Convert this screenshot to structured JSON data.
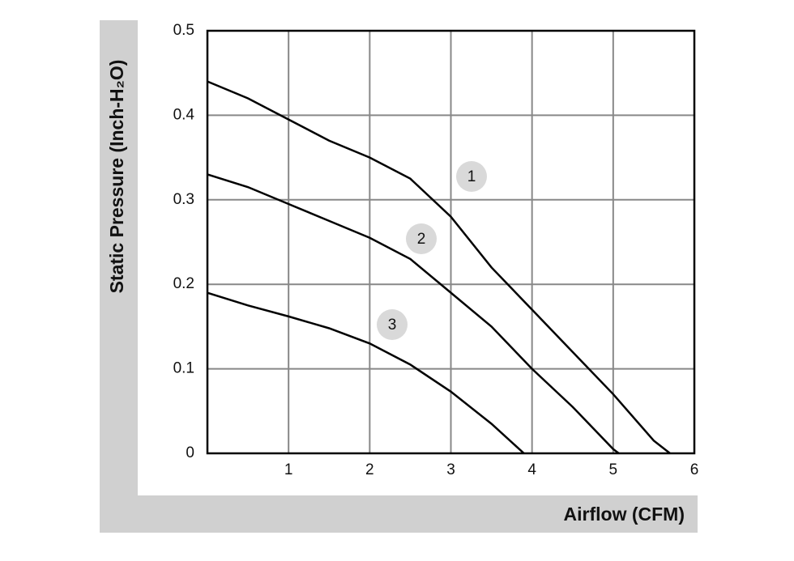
{
  "chart_data": {
    "type": "line",
    "xlabel": "Airflow (CFM)",
    "ylabel": "Static Pressure (Inch-H₂O)",
    "xlim": [
      0,
      6
    ],
    "xticks": [
      1,
      2,
      3,
      4,
      5,
      6
    ],
    "ylim": [
      0,
      0.5
    ],
    "yticks": [
      0,
      0.1,
      0.2,
      0.3,
      0.4,
      0.5
    ],
    "grid": true,
    "series": [
      {
        "name": "1",
        "color": "#000000",
        "x": [
          0,
          0.5,
          1,
          1.5,
          2,
          2.5,
          3,
          3.5,
          4,
          4.5,
          5,
          5.5,
          5.7
        ],
        "values": [
          0.44,
          0.42,
          0.395,
          0.37,
          0.35,
          0.325,
          0.28,
          0.22,
          0.17,
          0.12,
          0.07,
          0.015,
          0
        ]
      },
      {
        "name": "2",
        "color": "#000000",
        "x": [
          0,
          0.5,
          1,
          1.5,
          2,
          2.5,
          3,
          3.5,
          4,
          4.5,
          5,
          5.07
        ],
        "values": [
          0.33,
          0.315,
          0.295,
          0.275,
          0.255,
          0.23,
          0.19,
          0.15,
          0.1,
          0.055,
          0.005,
          0
        ]
      },
      {
        "name": "3",
        "color": "#000000",
        "x": [
          0,
          0.5,
          1,
          1.5,
          2,
          2.5,
          3,
          3.5,
          3.9
        ],
        "values": [
          0.19,
          0.175,
          0.162,
          0.148,
          0.13,
          0.105,
          0.073,
          0.035,
          0
        ]
      }
    ]
  }
}
